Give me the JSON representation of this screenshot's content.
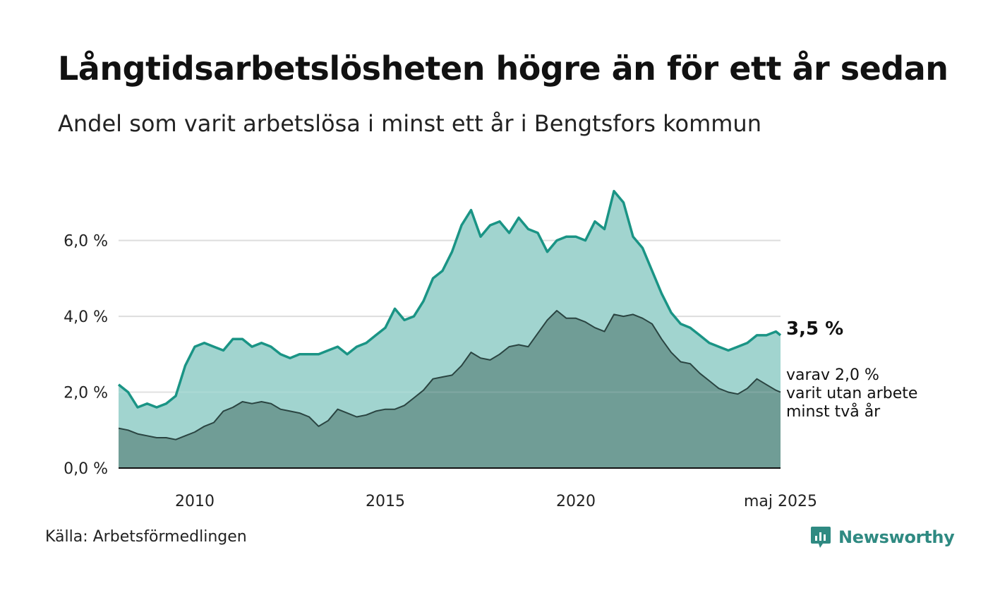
{
  "title": "Långtidsarbetslösheten högre än för ett år sedan",
  "subtitle": "Andel som varit arbetslösa i minst ett år i Bengtsfors kommun",
  "source": "Källa: Arbetsförmedlingen",
  "brand": "Newsworthy",
  "colors": {
    "total_line": "#1a9485",
    "total_fill": "#a1d4cf",
    "long_line": "#2a4441",
    "long_fill": "#709d96",
    "grid": "#dddddd",
    "brand": "#2f8a82"
  },
  "chart_data": {
    "type": "area",
    "ylim": [
      0,
      7.5
    ],
    "yticks": [
      {
        "value": 0,
        "label": "0,0 %"
      },
      {
        "value": 2,
        "label": "2,0 %"
      },
      {
        "value": 4,
        "label": "4,0 %"
      },
      {
        "value": 6,
        "label": "6,0 %"
      }
    ],
    "xlim": [
      2008.0,
      2025.37
    ],
    "xticks": [
      {
        "value": 2010,
        "label": "2010"
      },
      {
        "value": 2015,
        "label": "2015"
      },
      {
        "value": 2020,
        "label": "2020"
      },
      {
        "value": 2025.37,
        "label": "maj 2025"
      }
    ],
    "grid": true,
    "x": [
      2008.0,
      2008.25,
      2008.5,
      2008.75,
      2009.0,
      2009.25,
      2009.5,
      2009.75,
      2010.0,
      2010.25,
      2010.5,
      2010.75,
      2011.0,
      2011.25,
      2011.5,
      2011.75,
      2012.0,
      2012.25,
      2012.5,
      2012.75,
      2013.0,
      2013.25,
      2013.5,
      2013.75,
      2014.0,
      2014.25,
      2014.5,
      2014.75,
      2015.0,
      2015.25,
      2015.5,
      2015.75,
      2016.0,
      2016.25,
      2016.5,
      2016.75,
      2017.0,
      2017.25,
      2017.5,
      2017.75,
      2018.0,
      2018.25,
      2018.5,
      2018.75,
      2019.0,
      2019.25,
      2019.5,
      2019.75,
      2020.0,
      2020.25,
      2020.5,
      2020.75,
      2021.0,
      2021.25,
      2021.5,
      2021.75,
      2022.0,
      2022.25,
      2022.5,
      2022.75,
      2023.0,
      2023.25,
      2023.5,
      2023.75,
      2024.0,
      2024.25,
      2024.5,
      2024.75,
      2025.0,
      2025.25,
      2025.37
    ],
    "series": [
      {
        "values": [
          2.2,
          2.0,
          1.6,
          1.7,
          1.6,
          1.7,
          1.9,
          2.7,
          3.2,
          3.3,
          3.2,
          3.1,
          3.4,
          3.4,
          3.2,
          3.3,
          3.2,
          3.0,
          2.9,
          3.0,
          3.0,
          3.0,
          3.1,
          3.2,
          3.0,
          3.2,
          3.3,
          3.5,
          3.7,
          4.2,
          3.9,
          4.0,
          4.4,
          5.0,
          5.2,
          5.7,
          6.4,
          6.8,
          6.1,
          6.4,
          6.5,
          6.2,
          6.6,
          6.3,
          6.2,
          5.7,
          6.0,
          6.1,
          6.1,
          6.0,
          6.5,
          6.3,
          7.3,
          7.0,
          6.1,
          5.8,
          5.2,
          4.6,
          4.1,
          3.8,
          3.7,
          3.5,
          3.3,
          3.2,
          3.1,
          3.2,
          3.3,
          3.5,
          3.5,
          3.6,
          3.5
        ]
      },
      {
        "values": [
          1.05,
          1.0,
          0.9,
          0.85,
          0.8,
          0.8,
          0.75,
          0.85,
          0.95,
          1.1,
          1.2,
          1.5,
          1.6,
          1.75,
          1.7,
          1.75,
          1.7,
          1.55,
          1.5,
          1.45,
          1.35,
          1.1,
          1.25,
          1.55,
          1.45,
          1.35,
          1.4,
          1.5,
          1.55,
          1.55,
          1.65,
          1.85,
          2.05,
          2.35,
          2.4,
          2.45,
          2.7,
          3.05,
          2.9,
          2.85,
          3.0,
          3.2,
          3.25,
          3.2,
          3.55,
          3.9,
          4.15,
          3.95,
          3.95,
          3.85,
          3.7,
          3.6,
          4.05,
          4.0,
          4.05,
          3.95,
          3.8,
          3.4,
          3.05,
          2.8,
          2.75,
          2.5,
          2.3,
          2.1,
          2.0,
          1.95,
          2.1,
          2.35,
          2.2,
          2.05,
          2.0
        ]
      }
    ],
    "end_labels": {
      "total": "3,5 %",
      "long_lines": [
        "varav 2,0 %",
        "varit utan arbete",
        "minst två år"
      ]
    }
  }
}
